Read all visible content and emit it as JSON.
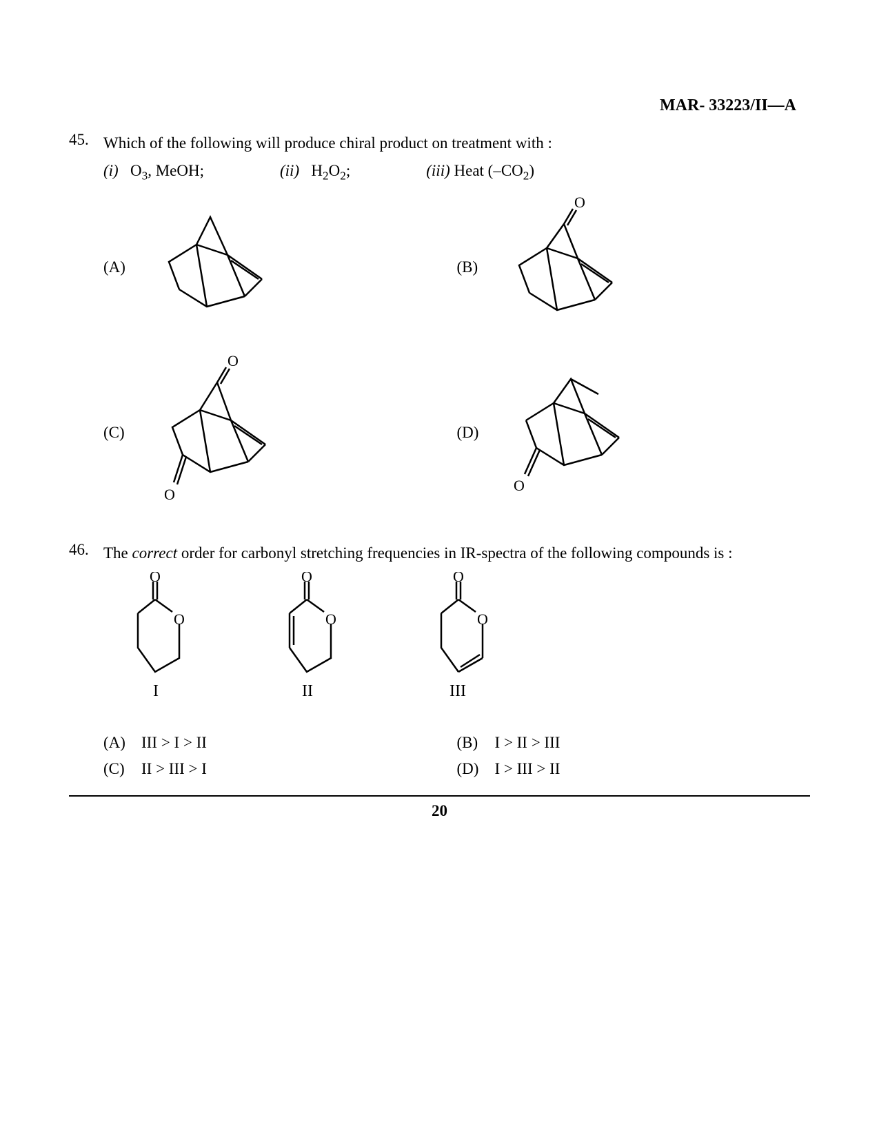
{
  "header": "MAR- 33223/II—A",
  "q45": {
    "number": "45.",
    "text": "Which of the following will produce chiral product on treatment with :",
    "conditions": [
      {
        "num": "(i)",
        "text_html": "O<sub>3</sub>, MeOH;"
      },
      {
        "num": "(ii)",
        "text_html": "H<sub>2</sub>O<sub>2</sub>;"
      },
      {
        "num": "(iii)",
        "text_html": "Heat (–CO<sub>2</sub>)"
      }
    ],
    "options": [
      "(A)",
      "(B)",
      "(C)",
      "(D)"
    ]
  },
  "q46": {
    "number": "46.",
    "text_prefix": "The ",
    "text_italic": "correct",
    "text_suffix": " order for carbonyl stretching frequencies in IR-spectra of the following compounds is :",
    "compound_labels": [
      "I",
      "II",
      "III"
    ],
    "answers": [
      {
        "label": "(A)",
        "text": "III > I > II"
      },
      {
        "label": "(B)",
        "text": "I > II > III"
      },
      {
        "label": "(C)",
        "text": "II > III > I"
      },
      {
        "label": "(D)",
        "text": "I > III > II"
      }
    ]
  },
  "page_number": "20",
  "colors": {
    "text": "#000000",
    "background": "#ffffff",
    "line": "#000000"
  }
}
